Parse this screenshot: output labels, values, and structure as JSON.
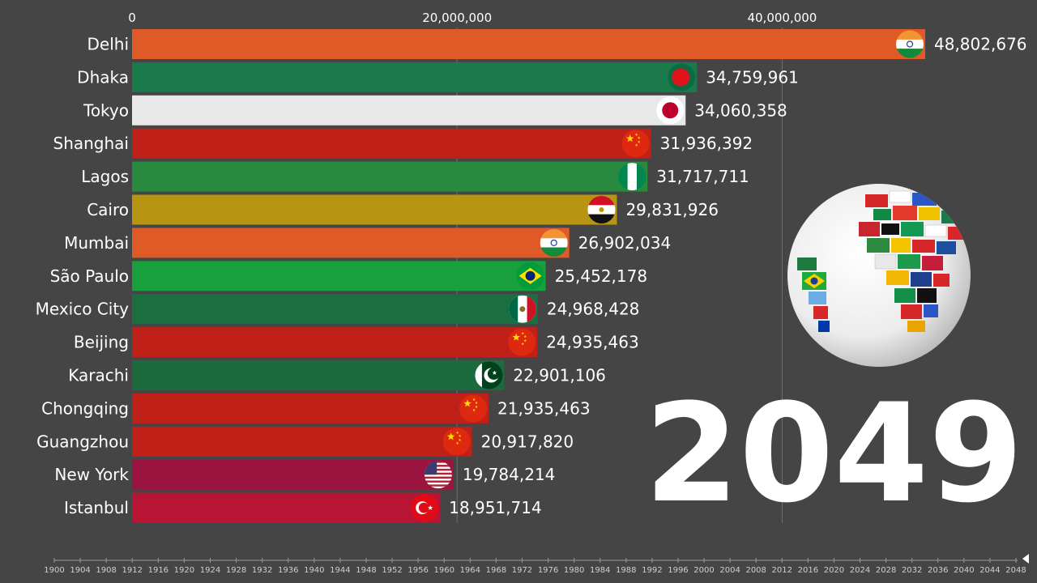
{
  "chart_data": {
    "type": "bar",
    "orientation": "horizontal",
    "title": "",
    "xlabel": "",
    "ylabel": "",
    "xlim": [
      0,
      48802676
    ],
    "x_ticks": [
      0,
      20000000,
      40000000
    ],
    "x_tick_labels": [
      "0",
      "20,000,000",
      "40,000,000"
    ],
    "categories": [
      "Delhi",
      "Dhaka",
      "Tokyo",
      "Shanghai",
      "Lagos",
      "Cairo",
      "Mumbai",
      "São Paulo",
      "Mexico City",
      "Beijing",
      "Karachi",
      "Chongqing",
      "Guangzhou",
      "New York",
      "Istanbul"
    ],
    "values": [
      48802676,
      34759961,
      34060358,
      31936392,
      31717711,
      29831926,
      26902034,
      25452178,
      24968428,
      24935463,
      22901106,
      21935463,
      20917820,
      19784214,
      18951714
    ],
    "value_labels": [
      "48,802,676",
      "34,759,961",
      "34,060,358",
      "31,936,392",
      "31,717,711",
      "29,831,926",
      "26,902,034",
      "25,452,178",
      "24,968,428",
      "24,935,463",
      "22,901,106",
      "21,935,463",
      "20,917,820",
      "19,784,214",
      "18,951,714"
    ],
    "bar_colors": [
      "#e05a27",
      "#1a7a4c",
      "#e8e8e8",
      "#bf2018",
      "#288a3e",
      "#b79411",
      "#e05a27",
      "#17a03c",
      "#1a6e40",
      "#bf2018",
      "#1d6a3f",
      "#bf2018",
      "#bf2018",
      "#9b1440",
      "#b81535"
    ],
    "flag_icons": [
      "india-flag-icon",
      "bangladesh-flag-icon",
      "japan-flag-icon",
      "china-flag-icon",
      "nigeria-flag-icon",
      "egypt-flag-icon",
      "india-flag-icon",
      "brazil-flag-icon",
      "mexico-flag-icon",
      "china-flag-icon",
      "pakistan-flag-icon",
      "china-flag-icon",
      "china-flag-icon",
      "usa-flag-icon",
      "turkey-flag-icon"
    ],
    "year": "2049",
    "timeline": {
      "start": 1900,
      "end": 2048,
      "labels": [
        "1900",
        "1904",
        "1908",
        "1912",
        "1916",
        "1920",
        "1924",
        "1928",
        "1932",
        "1936",
        "1940",
        "1944",
        "1948",
        "1952",
        "1956",
        "1960",
        "1964",
        "1968",
        "1972",
        "1976",
        "1980",
        "1984",
        "1988",
        "1992",
        "1996",
        "2000",
        "2004",
        "2008",
        "2012",
        "2016",
        "2020",
        "2024",
        "2028",
        "2032",
        "2036",
        "2040",
        "2044",
        "2048"
      ]
    },
    "decoration": "globe-with-flags-icon",
    "grid": true,
    "legend": "none"
  }
}
